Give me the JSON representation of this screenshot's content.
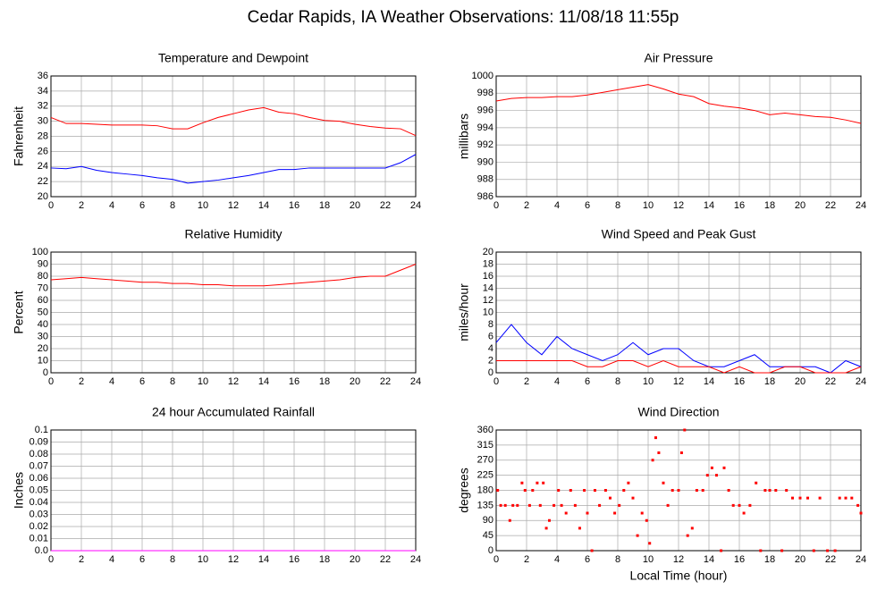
{
  "title": "Cedar Rapids, IA Weather Observations: 11/08/18 11:55p",
  "chart_data": [
    {
      "type": "line",
      "title": "Temperature and Dewpoint",
      "ylabel": "Fahrenheit",
      "grid": true,
      "x": [
        0,
        1,
        2,
        3,
        4,
        5,
        6,
        7,
        8,
        9,
        10,
        11,
        12,
        13,
        14,
        15,
        16,
        17,
        18,
        19,
        20,
        21,
        22,
        23,
        24
      ],
      "xlim": [
        0,
        24
      ],
      "xticks": [
        0,
        2,
        4,
        6,
        8,
        10,
        12,
        14,
        16,
        18,
        20,
        22,
        24
      ],
      "ylim": [
        20,
        36
      ],
      "yticks": [
        20,
        22,
        24,
        26,
        28,
        30,
        32,
        34,
        36
      ],
      "series": [
        {
          "color": "#ff0000",
          "values": [
            30.5,
            29.7,
            29.7,
            29.6,
            29.5,
            29.5,
            29.5,
            29.4,
            29.0,
            29.0,
            29.8,
            30.5,
            31.0,
            31.5,
            31.8,
            31.2,
            31.0,
            30.5,
            30.1,
            30.0,
            29.6,
            29.3,
            29.1,
            29.0,
            28.1
          ]
        },
        {
          "color": "#0000ff",
          "values": [
            23.8,
            23.7,
            24.0,
            23.5,
            23.2,
            23.0,
            22.8,
            22.5,
            22.3,
            21.8,
            22.0,
            22.2,
            22.5,
            22.8,
            23.2,
            23.6,
            23.6,
            23.8,
            23.8,
            23.8,
            23.8,
            23.8,
            23.8,
            24.5,
            25.6
          ]
        }
      ]
    },
    {
      "type": "line",
      "title": "Air Pressure",
      "ylabel": "millibars",
      "grid": true,
      "x": [
        0,
        1,
        2,
        3,
        4,
        5,
        6,
        7,
        8,
        9,
        10,
        11,
        12,
        13,
        14,
        15,
        16,
        17,
        18,
        19,
        20,
        21,
        22,
        23,
        24
      ],
      "xlim": [
        0,
        24
      ],
      "xticks": [
        0,
        2,
        4,
        6,
        8,
        10,
        12,
        14,
        16,
        18,
        20,
        22,
        24
      ],
      "ylim": [
        986,
        1000
      ],
      "yticks": [
        986,
        988,
        990,
        992,
        994,
        996,
        998,
        1000
      ],
      "series": [
        {
          "color": "#ff0000",
          "values": [
            997.1,
            997.4,
            997.5,
            997.5,
            997.6,
            997.6,
            997.8,
            998.1,
            998.4,
            998.7,
            999.0,
            998.5,
            997.9,
            997.6,
            996.8,
            996.5,
            996.3,
            996.0,
            995.5,
            995.7,
            995.5,
            995.3,
            995.2,
            994.9,
            994.5
          ]
        }
      ]
    },
    {
      "type": "line",
      "title": "Relative Humidity",
      "ylabel": "Percent",
      "grid": true,
      "x": [
        0,
        1,
        2,
        3,
        4,
        5,
        6,
        7,
        8,
        9,
        10,
        11,
        12,
        13,
        14,
        15,
        16,
        17,
        18,
        19,
        20,
        21,
        22,
        23,
        24
      ],
      "xlim": [
        0,
        24
      ],
      "xticks": [
        0,
        2,
        4,
        6,
        8,
        10,
        12,
        14,
        16,
        18,
        20,
        22,
        24
      ],
      "ylim": [
        0,
        100
      ],
      "yticks": [
        0,
        10,
        20,
        30,
        40,
        50,
        60,
        70,
        80,
        90,
        100
      ],
      "series": [
        {
          "color": "#ff0000",
          "values": [
            77,
            78,
            79,
            78,
            77,
            76,
            75,
            75,
            74,
            74,
            73,
            73,
            72,
            72,
            72,
            73,
            74,
            75,
            76,
            77,
            79,
            80,
            80,
            85,
            90
          ]
        }
      ]
    },
    {
      "type": "line",
      "title": "Wind Speed and Peak Gust",
      "ylabel": "miles/hour",
      "grid": true,
      "x": [
        0,
        1,
        2,
        3,
        4,
        5,
        6,
        7,
        8,
        9,
        10,
        11,
        12,
        13,
        14,
        15,
        16,
        17,
        18,
        19,
        20,
        21,
        22,
        23,
        24
      ],
      "xlim": [
        0,
        24
      ],
      "xticks": [
        0,
        2,
        4,
        6,
        8,
        10,
        12,
        14,
        16,
        18,
        20,
        22,
        24
      ],
      "ylim": [
        0,
        20
      ],
      "yticks": [
        0,
        2,
        4,
        6,
        8,
        10,
        12,
        14,
        16,
        18,
        20
      ],
      "series": [
        {
          "color": "#0000ff",
          "values": [
            5,
            8,
            5,
            3,
            6,
            4,
            3,
            2,
            3,
            5,
            3,
            4,
            4,
            2,
            1,
            1,
            2,
            3,
            1,
            1,
            1,
            1,
            0,
            2,
            1
          ]
        },
        {
          "color": "#ff0000",
          "values": [
            2,
            2,
            2,
            2,
            2,
            2,
            1,
            1,
            2,
            2,
            1,
            2,
            1,
            1,
            1,
            0,
            1,
            0,
            0,
            1,
            1,
            0,
            0,
            0,
            1
          ]
        }
      ]
    },
    {
      "type": "line",
      "title": "24 hour Accumulated Rainfall",
      "ylabel": "Inches",
      "grid": true,
      "x": [
        0,
        24
      ],
      "xlim": [
        0,
        24
      ],
      "xticks": [
        0,
        2,
        4,
        6,
        8,
        10,
        12,
        14,
        16,
        18,
        20,
        22,
        24
      ],
      "ylim": [
        0,
        0.1
      ],
      "yticks": [
        {
          "value": 0,
          "label": "0.0"
        },
        0.01,
        0.02,
        0.03,
        0.04,
        0.05,
        0.06,
        0.07,
        0.08,
        0.09,
        0.1
      ],
      "series": [
        {
          "color": "#ff00ff",
          "values": [
            0,
            0
          ]
        }
      ]
    },
    {
      "type": "scatter",
      "title": "Wind Direction",
      "ylabel": "degrees",
      "xlabel": "Local Time (hour)",
      "grid": true,
      "x": [
        0.1,
        0.3,
        0.6,
        0.9,
        1.1,
        1.4,
        1.7,
        1.9,
        2.2,
        2.4,
        2.7,
        2.9,
        3.1,
        3.3,
        3.5,
        3.8,
        4.1,
        4.3,
        4.6,
        4.9,
        5.2,
        5.5,
        5.8,
        6.0,
        6.3,
        6.5,
        6.8,
        7.2,
        7.5,
        7.8,
        8.1,
        8.4,
        8.7,
        9.0,
        9.3,
        9.6,
        9.9,
        10.1,
        10.3,
        10.5,
        10.7,
        11.0,
        11.3,
        11.6,
        12.0,
        12.2,
        12.4,
        12.6,
        12.9,
        13.2,
        13.6,
        13.9,
        14.2,
        14.5,
        14.8,
        15.0,
        15.3,
        15.6,
        16.0,
        16.3,
        16.7,
        17.1,
        17.4,
        17.7,
        18.0,
        18.4,
        18.8,
        19.1,
        19.5,
        20.0,
        20.5,
        20.9,
        21.3,
        21.8,
        22.3,
        22.6,
        23.0,
        23.4,
        23.8,
        24.0
      ],
      "xlim": [
        0,
        24
      ],
      "xticks": [
        0,
        2,
        4,
        6,
        8,
        10,
        12,
        14,
        16,
        18,
        20,
        22,
        24
      ],
      "ylim": [
        0,
        360
      ],
      "yticks": [
        0,
        45,
        90,
        135,
        180,
        225,
        270,
        315,
        360
      ],
      "series": [
        {
          "color": "#ff0000",
          "values": [
            180,
            135,
            135,
            90,
            135,
            135,
            202,
            180,
            135,
            180,
            202,
            135,
            202,
            67,
            90,
            135,
            180,
            135,
            112,
            180,
            135,
            67,
            180,
            112,
            0,
            180,
            135,
            180,
            157,
            112,
            135,
            180,
            202,
            157,
            45,
            112,
            90,
            22,
            270,
            337,
            292,
            202,
            135,
            180,
            180,
            292,
            360,
            45,
            67,
            180,
            180,
            225,
            247,
            225,
            0,
            247,
            180,
            135,
            135,
            112,
            135,
            202,
            0,
            180,
            180,
            180,
            0,
            180,
            157,
            157,
            157,
            0,
            157,
            0,
            0,
            157,
            157,
            157,
            135,
            112
          ]
        }
      ]
    }
  ]
}
